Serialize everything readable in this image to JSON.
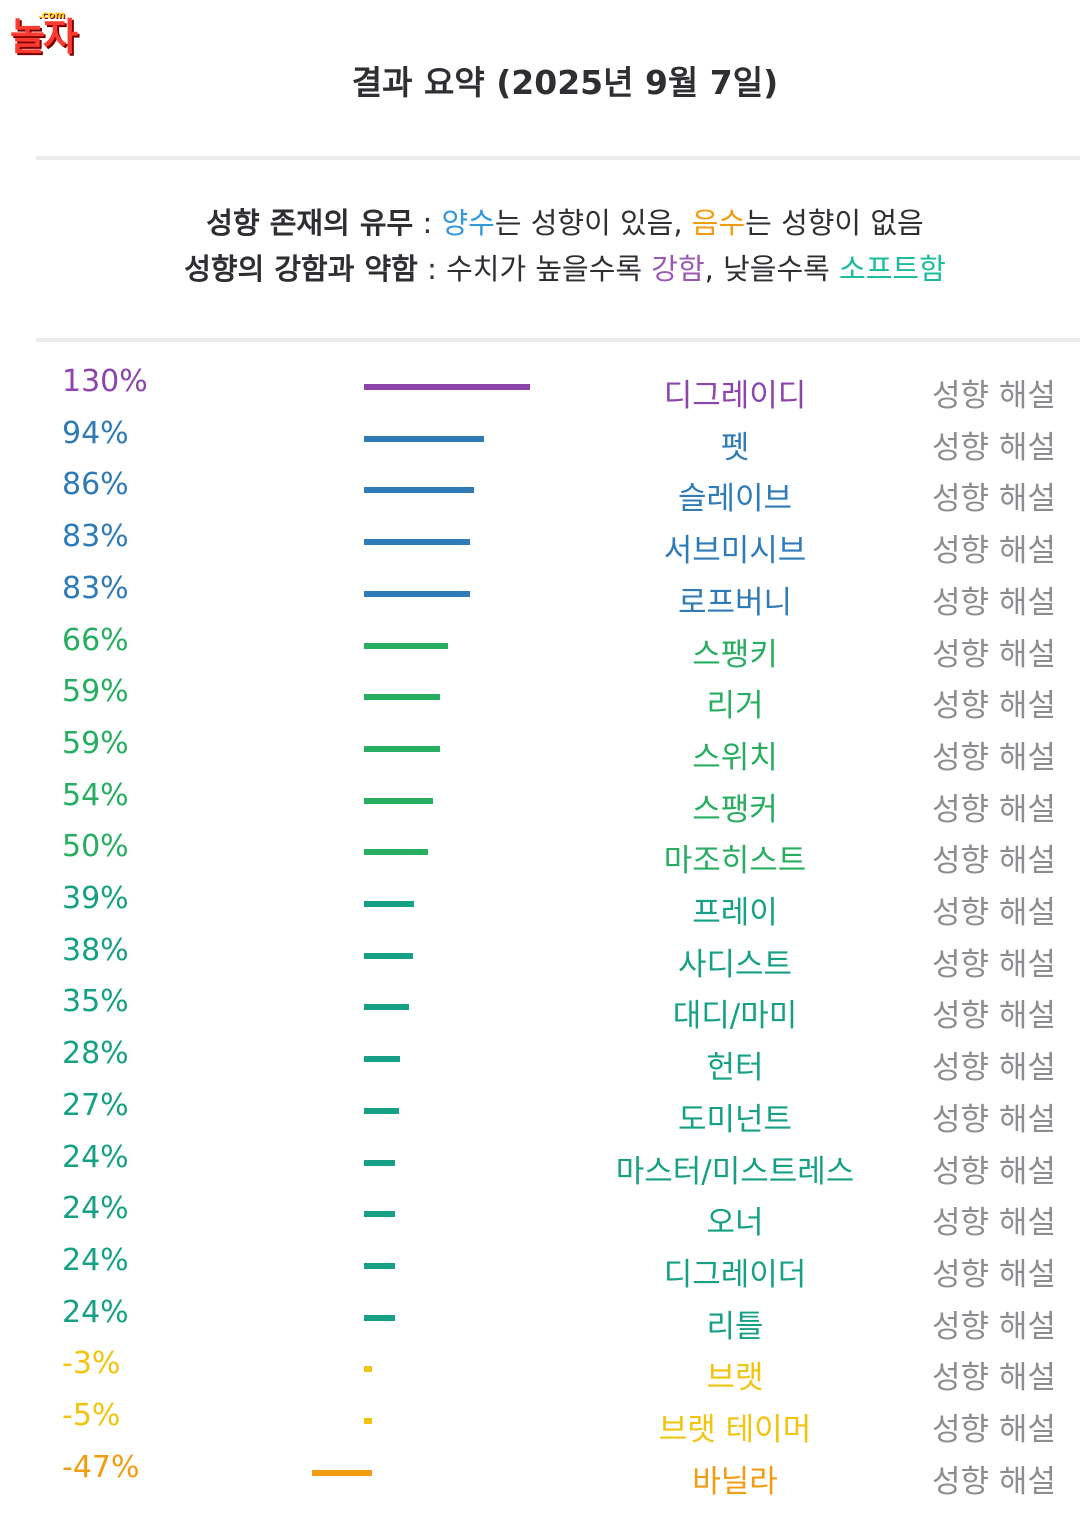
{
  "logo": {
    "text": "놀자",
    "small": ".com"
  },
  "title": "결과 요약 (2025년 9월 7일)",
  "legend": {
    "line1": {
      "label": "성향 존재의 유무",
      "sep": " : ",
      "positive": "양수",
      "part1": "는 성향이 있음, ",
      "negative": "음수",
      "part2": "는 성향이 없음"
    },
    "line2": {
      "label": "성향의 강함과 약함",
      "sep": " : ",
      "part1": "수치가 높을수록 ",
      "strong": "강함",
      "part2": ", 낮을수록 ",
      "soft": "소프트함"
    }
  },
  "colors": {
    "purple": "#8e44ad",
    "blue": "#2e7bb8",
    "green": "#27ae60",
    "teal": "#16a085",
    "yellow": "#f1c40f",
    "orange": "#f39c12",
    "positive": "#3498db",
    "negative": "#f39c12",
    "strong": "#9b59b6",
    "soft": "#1abc9c"
  },
  "results": [
    {
      "percent": "130%",
      "value": 130,
      "name": "디그레이디",
      "desc": "성향 해설",
      "color": "#8e44ad"
    },
    {
      "percent": "94%",
      "value": 94,
      "name": "펫",
      "desc": "성향 해설",
      "color": "#2e7bb8"
    },
    {
      "percent": "86%",
      "value": 86,
      "name": "슬레이브",
      "desc": "성향 해설",
      "color": "#2e7bb8"
    },
    {
      "percent": "83%",
      "value": 83,
      "name": "서브미시브",
      "desc": "성향 해설",
      "color": "#2e7bb8"
    },
    {
      "percent": "83%",
      "value": 83,
      "name": "로프버니",
      "desc": "성향 해설",
      "color": "#2e7bb8"
    },
    {
      "percent": "66%",
      "value": 66,
      "name": "스팽키",
      "desc": "성향 해설",
      "color": "#27ae60"
    },
    {
      "percent": "59%",
      "value": 59,
      "name": "리거",
      "desc": "성향 해설",
      "color": "#27ae60"
    },
    {
      "percent": "59%",
      "value": 59,
      "name": "스위치",
      "desc": "성향 해설",
      "color": "#27ae60"
    },
    {
      "percent": "54%",
      "value": 54,
      "name": "스팽커",
      "desc": "성향 해설",
      "color": "#27ae60"
    },
    {
      "percent": "50%",
      "value": 50,
      "name": "마조히스트",
      "desc": "성향 해설",
      "color": "#27ae60"
    },
    {
      "percent": "39%",
      "value": 39,
      "name": "프레이",
      "desc": "성향 해설",
      "color": "#16a085"
    },
    {
      "percent": "38%",
      "value": 38,
      "name": "사디스트",
      "desc": "성향 해설",
      "color": "#16a085"
    },
    {
      "percent": "35%",
      "value": 35,
      "name": "대디/마미",
      "desc": "성향 해설",
      "color": "#16a085"
    },
    {
      "percent": "28%",
      "value": 28,
      "name": "헌터",
      "desc": "성향 해설",
      "color": "#16a085"
    },
    {
      "percent": "27%",
      "value": 27,
      "name": "도미넌트",
      "desc": "성향 해설",
      "color": "#16a085"
    },
    {
      "percent": "24%",
      "value": 24,
      "name": "마스터/미스트레스",
      "desc": "성향 해설",
      "color": "#16a085"
    },
    {
      "percent": "24%",
      "value": 24,
      "name": "오너",
      "desc": "성향 해설",
      "color": "#16a085"
    },
    {
      "percent": "24%",
      "value": 24,
      "name": "디그레이더",
      "desc": "성향 해설",
      "color": "#16a085"
    },
    {
      "percent": "24%",
      "value": 24,
      "name": "리틀",
      "desc": "성향 해설",
      "color": "#16a085"
    },
    {
      "percent": "-3%",
      "value": -3,
      "name": "브랫",
      "desc": "성향 해설",
      "color": "#f1c40f"
    },
    {
      "percent": "-5%",
      "value": -5,
      "name": "브랫 테이머",
      "desc": "성향 해설",
      "color": "#f1c40f"
    },
    {
      "percent": "-47%",
      "value": -47,
      "name": "바닐라",
      "desc": "성향 해설",
      "color": "#f39c12"
    }
  ]
}
